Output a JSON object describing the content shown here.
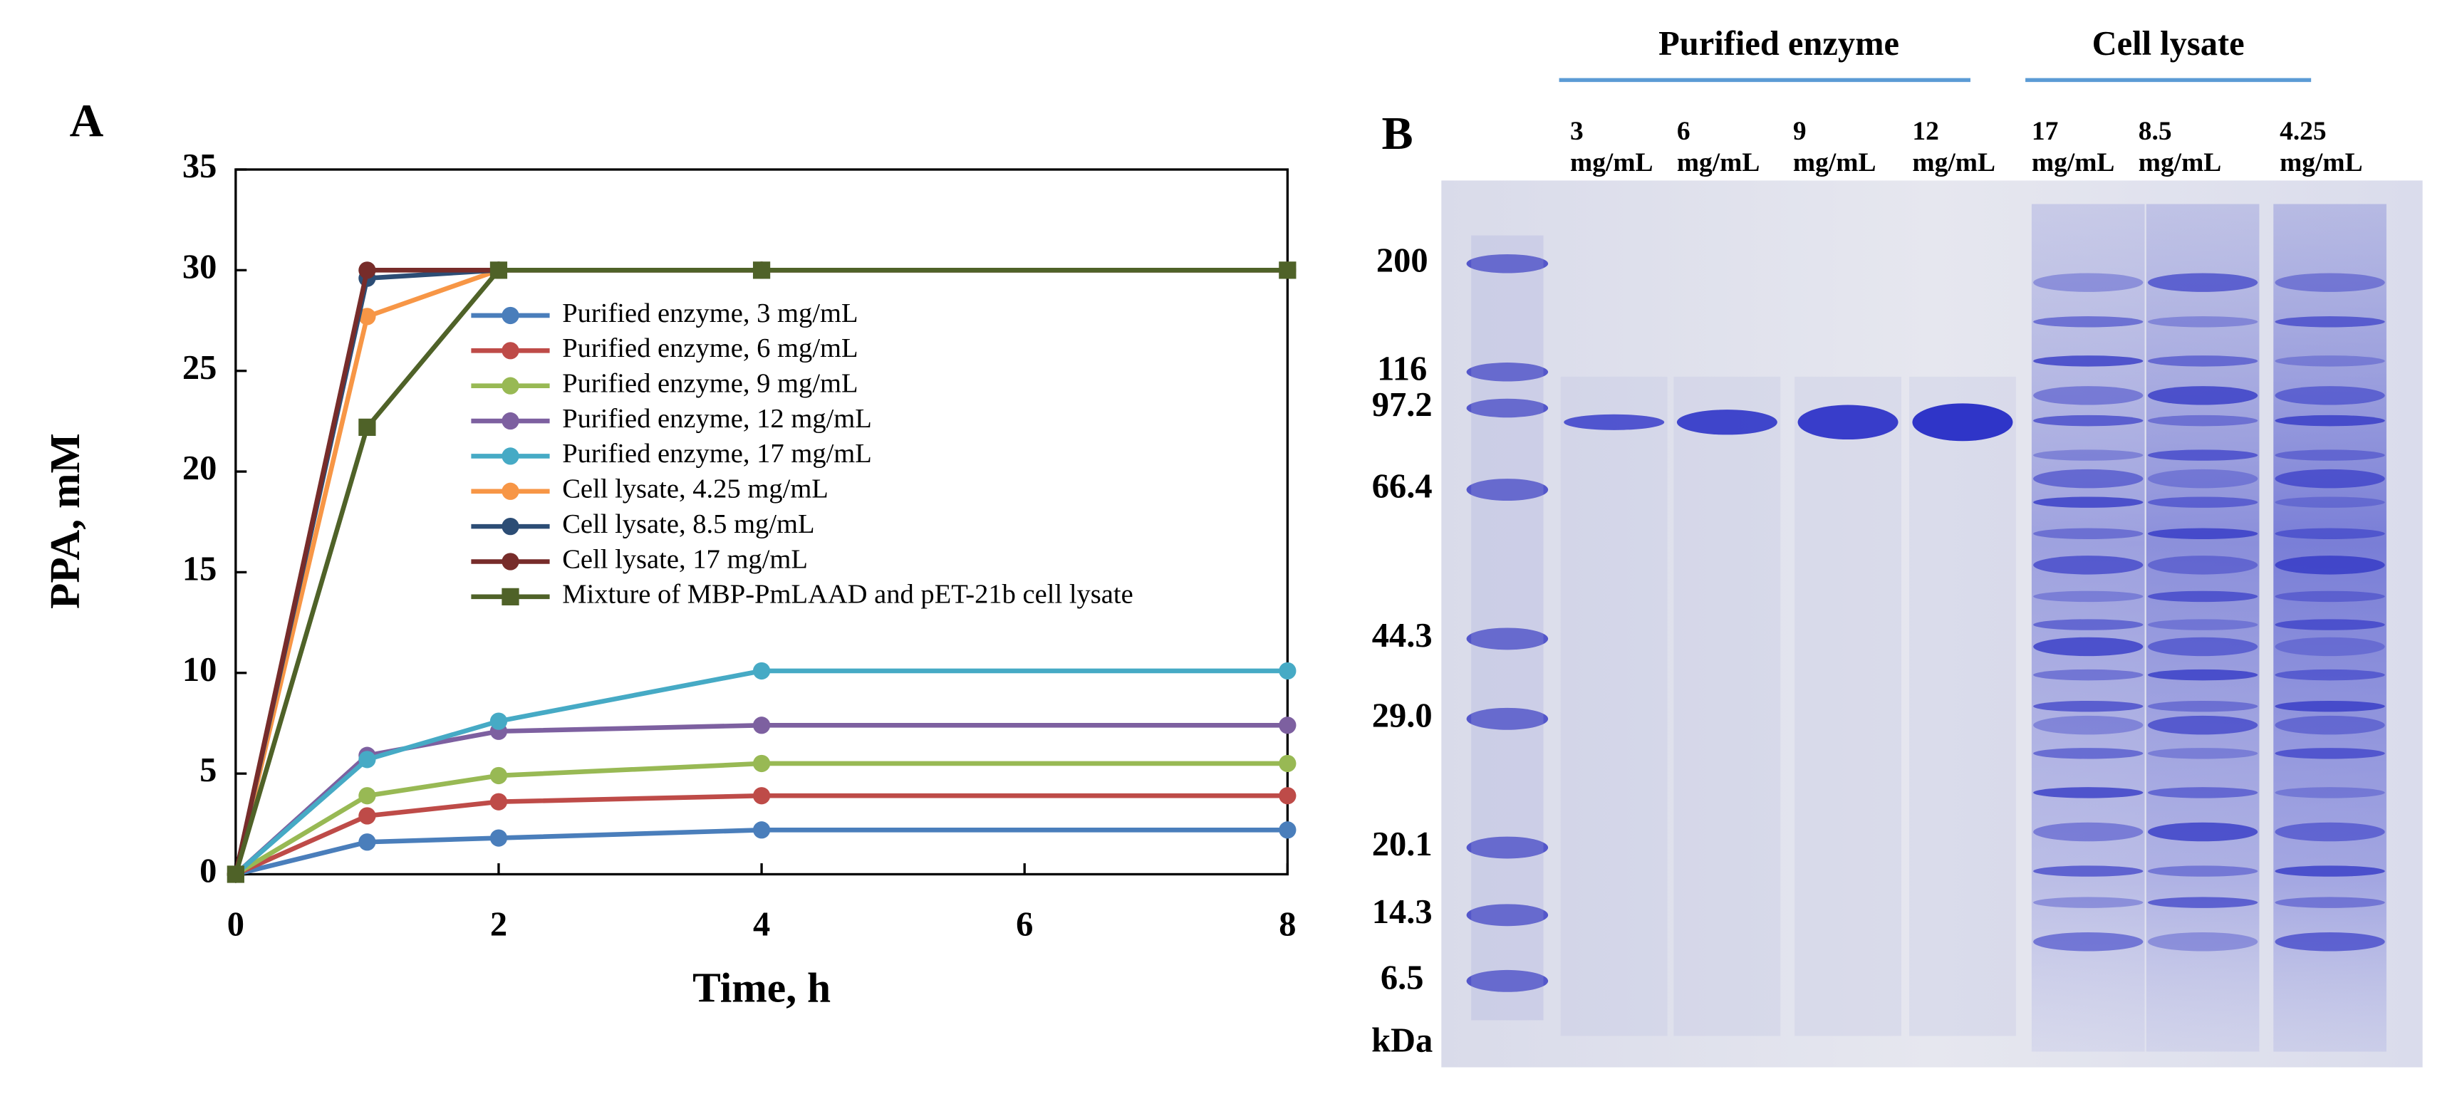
{
  "chart_data": {
    "type": "line",
    "panel_label": "A",
    "xlabel": "Time, h",
    "ylabel": "PPA, mM",
    "x": [
      0,
      1,
      2,
      4,
      8
    ],
    "xlim": [
      0,
      8
    ],
    "xticks": [
      0,
      2,
      4,
      6,
      8
    ],
    "ylim": [
      0,
      35
    ],
    "yticks": [
      0,
      5,
      10,
      15,
      20,
      25,
      30,
      35
    ],
    "grid": false,
    "legend": "upper center",
    "series": [
      {
        "name": "Purified enzyme, 3 mg/mL",
        "color": "#4a7ebb",
        "marker": "circle",
        "values": [
          0,
          1.6,
          1.8,
          2.2,
          2.2
        ]
      },
      {
        "name": "Purified enzyme, 6 mg/mL",
        "color": "#be4b48",
        "marker": "circle",
        "values": [
          0,
          2.9,
          3.6,
          3.9,
          3.9
        ]
      },
      {
        "name": "Purified enzyme, 9 mg/mL",
        "color": "#98b954",
        "marker": "circle",
        "values": [
          0,
          3.9,
          4.9,
          5.5,
          5.5
        ]
      },
      {
        "name": "Purified enzyme, 12 mg/mL",
        "color": "#7d60a0",
        "marker": "circle",
        "values": [
          0,
          5.9,
          7.1,
          7.4,
          7.4
        ]
      },
      {
        "name": "Purified enzyme, 17 mg/mL",
        "color": "#46aac5",
        "marker": "circle",
        "values": [
          0,
          5.7,
          7.6,
          10.1,
          10.1
        ]
      },
      {
        "name": "Cell lysate, 4.25 mg/mL",
        "color": "#f79646",
        "marker": "circle",
        "values": [
          0,
          27.7,
          30,
          30,
          30
        ]
      },
      {
        "name": "Cell lysate, 8.5 mg/mL",
        "color": "#2c4d75",
        "marker": "circle",
        "values": [
          0,
          29.6,
          30,
          30,
          30
        ]
      },
      {
        "name": "Cell lysate, 17 mg/mL",
        "color": "#772c2a",
        "marker": "circle",
        "values": [
          0,
          30,
          30,
          30,
          30
        ]
      },
      {
        "name": "Mixture of MBP-PmLAAD and pET-21b cell lysate",
        "color": "#4f6228",
        "marker": "square",
        "values": [
          0,
          22.2,
          30,
          30,
          30
        ]
      }
    ]
  },
  "panel_b": {
    "panel_label": "B",
    "groups": [
      "Purified enzyme",
      "Cell lysate"
    ],
    "lanes": [
      {
        "amount": "3",
        "unit": "mg/mL"
      },
      {
        "amount": "6",
        "unit": "mg/mL"
      },
      {
        "amount": "9",
        "unit": "mg/mL"
      },
      {
        "amount": "12",
        "unit": "mg/mL"
      },
      {
        "amount": "17",
        "unit": "mg/mL"
      },
      {
        "amount": "8.5",
        "unit": "mg/mL"
      },
      {
        "amount": "4.25",
        "unit": "mg/mL"
      }
    ],
    "markers": [
      "200",
      "116",
      "97.2",
      "66.4",
      "44.3",
      "29.0",
      "20.1",
      "14.3",
      "6.5"
    ],
    "marker_unit": "kDa"
  }
}
